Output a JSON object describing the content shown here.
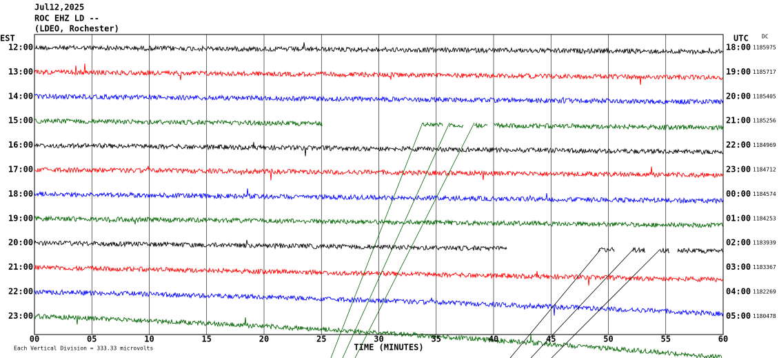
{
  "header": {
    "date": "Jul12,2025",
    "station": "ROC EHZ LD --",
    "network": "(LDEO, Rochester)"
  },
  "left_axis_label": "EST",
  "right_axis_label": "UTC",
  "dc_label": "DC",
  "rows": [
    {
      "est": "12:00",
      "utc": "18:00",
      "dc": "1185975",
      "color": "#000000"
    },
    {
      "est": "13:00",
      "utc": "19:00",
      "dc": "1185717",
      "color": "#ff0000"
    },
    {
      "est": "14:00",
      "utc": "20:00",
      "dc": "1185405",
      "color": "#0000ff"
    },
    {
      "est": "15:00",
      "utc": "21:00",
      "dc": "1185256",
      "color": "#006400"
    },
    {
      "est": "16:00",
      "utc": "22:00",
      "dc": "1184969",
      "color": "#000000"
    },
    {
      "est": "17:00",
      "utc": "23:00",
      "dc": "1184712",
      "color": "#ff0000"
    },
    {
      "est": "18:00",
      "utc": "00:00",
      "dc": "1184574",
      "color": "#0000ff"
    },
    {
      "est": "19:00",
      "utc": "01:00",
      "dc": "1184253",
      "color": "#006400"
    },
    {
      "est": "20:00",
      "utc": "02:00",
      "dc": "1183939",
      "color": "#000000"
    },
    {
      "est": "21:00",
      "utc": "03:00",
      "dc": "1183367",
      "color": "#ff0000"
    },
    {
      "est": "22:00",
      "utc": "04:00",
      "dc": "1182269",
      "color": "#0000ff"
    },
    {
      "est": "23:00",
      "utc": "05:00",
      "dc": "1180478",
      "color": "#006400"
    }
  ],
  "x_axis": {
    "ticks": [
      "00",
      "05",
      "10",
      "15",
      "20",
      "25",
      "30",
      "35",
      "40",
      "45",
      "50",
      "55",
      "60"
    ],
    "label": "TIME (MINUTES)"
  },
  "footer": "Each Vertical Division =  333.33 microvolts"
}
